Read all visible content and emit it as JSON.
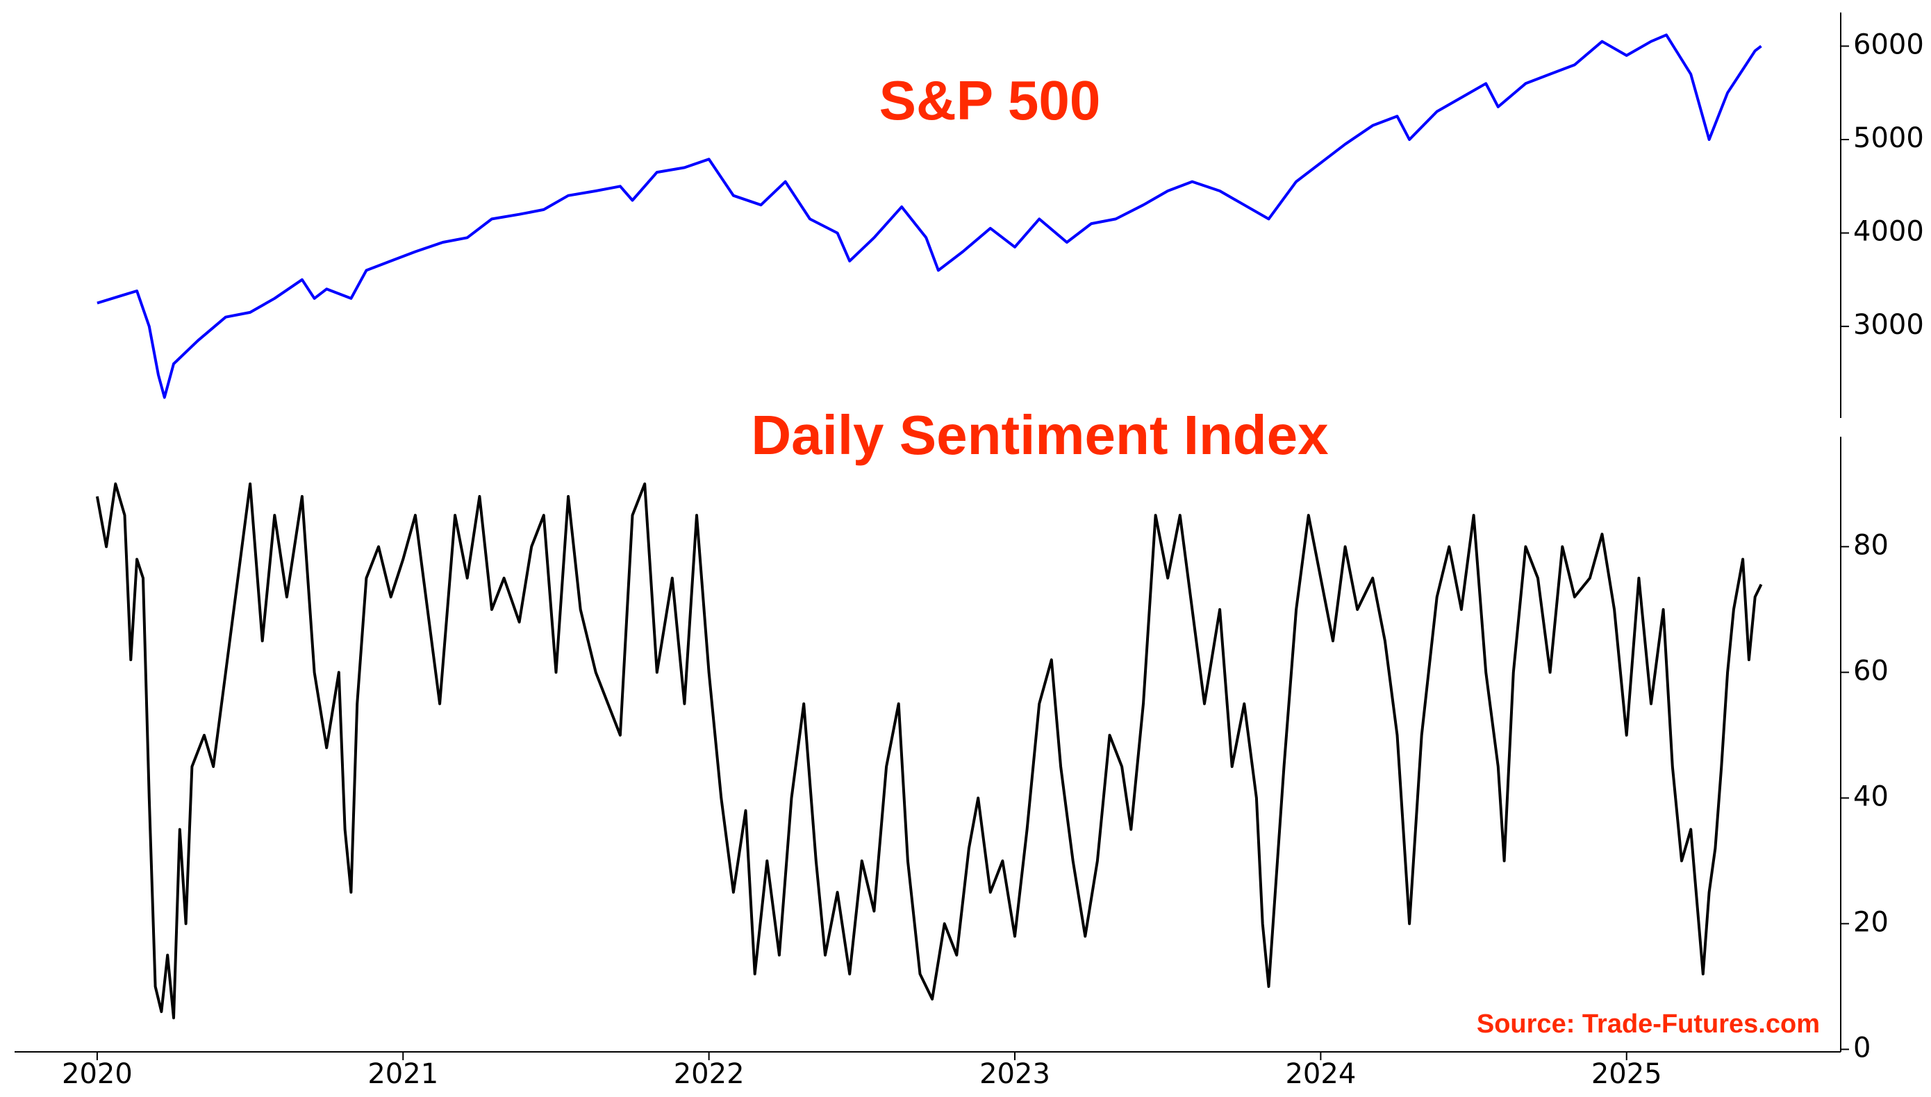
{
  "chart_data": [
    {
      "type": "line",
      "title": "S&P 500",
      "color": "#0000ff",
      "x": [
        2020.0,
        2020.08,
        2020.13,
        2020.17,
        2020.2,
        2020.22,
        2020.25,
        2020.33,
        2020.42,
        2020.5,
        2020.58,
        2020.67,
        2020.71,
        2020.75,
        2020.83,
        2020.88,
        2020.96,
        2021.04,
        2021.13,
        2021.21,
        2021.29,
        2021.38,
        2021.46,
        2021.54,
        2021.63,
        2021.71,
        2021.75,
        2021.83,
        2021.92,
        2022.0,
        2022.08,
        2022.17,
        2022.25,
        2022.33,
        2022.42,
        2022.46,
        2022.54,
        2022.63,
        2022.71,
        2022.75,
        2022.83,
        2022.92,
        2023.0,
        2023.08,
        2023.17,
        2023.25,
        2023.33,
        2023.42,
        2023.5,
        2023.58,
        2023.67,
        2023.75,
        2023.83,
        2023.92,
        2024.0,
        2024.08,
        2024.17,
        2024.25,
        2024.29,
        2024.38,
        2024.46,
        2024.54,
        2024.58,
        2024.67,
        2024.75,
        2024.83,
        2024.92,
        2025.0,
        2025.08,
        2025.13,
        2025.21,
        2025.27,
        2025.33,
        2025.38,
        2025.42,
        2025.44
      ],
      "values": [
        3250,
        3330,
        3380,
        3000,
        2480,
        2240,
        2600,
        2850,
        3100,
        3150,
        3300,
        3500,
        3300,
        3400,
        3300,
        3600,
        3700,
        3800,
        3900,
        3950,
        4150,
        4200,
        4250,
        4400,
        4450,
        4500,
        4350,
        4650,
        4700,
        4790,
        4400,
        4300,
        4550,
        4150,
        4000,
        3700,
        3950,
        4280,
        3950,
        3600,
        3800,
        4050,
        3850,
        4150,
        3900,
        4100,
        4150,
        4300,
        4450,
        4550,
        4450,
        4300,
        4150,
        4550,
        4750,
        4950,
        5150,
        5250,
        5000,
        5300,
        5450,
        5600,
        5350,
        5600,
        5700,
        5800,
        6050,
        5900,
        6050,
        6120,
        5700,
        5000,
        5500,
        5750,
        5950,
        6000
      ],
      "xlim": [
        2019.73,
        2025.7
      ],
      "ylim": [
        2020,
        6360
      ],
      "yticks": [
        3000,
        4000,
        5000,
        6000
      ]
    },
    {
      "type": "line",
      "title": "Daily Sentiment Index",
      "color": "#000000",
      "annotation": "Source: Trade-Futures.com",
      "x": [
        2020.0,
        2020.03,
        2020.06,
        2020.09,
        2020.11,
        2020.13,
        2020.15,
        2020.17,
        2020.19,
        2020.21,
        2020.23,
        2020.25,
        2020.27,
        2020.29,
        2020.31,
        2020.35,
        2020.38,
        2020.42,
        2020.46,
        2020.5,
        2020.54,
        2020.58,
        2020.62,
        2020.67,
        2020.71,
        2020.75,
        2020.79,
        2020.81,
        2020.83,
        2020.85,
        2020.88,
        2020.92,
        2020.96,
        2021.0,
        2021.04,
        2021.08,
        2021.12,
        2021.17,
        2021.21,
        2021.25,
        2021.29,
        2021.33,
        2021.38,
        2021.42,
        2021.46,
        2021.5,
        2021.54,
        2021.58,
        2021.63,
        2021.67,
        2021.71,
        2021.75,
        2021.79,
        2021.83,
        2021.88,
        2021.92,
        2021.96,
        2022.0,
        2022.04,
        2022.08,
        2022.12,
        2022.15,
        2022.19,
        2022.23,
        2022.27,
        2022.31,
        2022.35,
        2022.38,
        2022.42,
        2022.46,
        2022.5,
        2022.54,
        2022.58,
        2022.62,
        2022.65,
        2022.69,
        2022.73,
        2022.77,
        2022.81,
        2022.85,
        2022.88,
        2022.92,
        2022.96,
        2023.0,
        2023.04,
        2023.08,
        2023.12,
        2023.15,
        2023.19,
        2023.23,
        2023.27,
        2023.31,
        2023.35,
        2023.38,
        2023.42,
        2023.46,
        2023.5,
        2023.54,
        2023.58,
        2023.62,
        2023.67,
        2023.71,
        2023.75,
        2023.79,
        2023.81,
        2023.83,
        2023.88,
        2023.92,
        2023.96,
        2024.0,
        2024.04,
        2024.08,
        2024.12,
        2024.17,
        2024.21,
        2024.25,
        2024.29,
        2024.33,
        2024.38,
        2024.42,
        2024.46,
        2024.5,
        2024.54,
        2024.58,
        2024.6,
        2024.63,
        2024.67,
        2024.71,
        2024.75,
        2024.79,
        2024.83,
        2024.88,
        2024.92,
        2024.96,
        2025.0,
        2025.04,
        2025.08,
        2025.12,
        2025.15,
        2025.18,
        2025.21,
        2025.25,
        2025.27,
        2025.29,
        2025.31,
        2025.33,
        2025.35,
        2025.38,
        2025.4,
        2025.42,
        2025.44
      ],
      "values": [
        88,
        80,
        90,
        85,
        62,
        78,
        75,
        40,
        10,
        6,
        15,
        5,
        35,
        20,
        45,
        50,
        45,
        60,
        75,
        90,
        65,
        85,
        72,
        88,
        60,
        48,
        60,
        35,
        25,
        55,
        75,
        80,
        72,
        78,
        85,
        70,
        55,
        85,
        75,
        88,
        70,
        75,
        68,
        80,
        85,
        60,
        88,
        70,
        60,
        55,
        50,
        85,
        90,
        60,
        75,
        55,
        85,
        60,
        40,
        25,
        38,
        12,
        30,
        15,
        40,
        55,
        30,
        15,
        25,
        12,
        30,
        22,
        45,
        55,
        30,
        12,
        8,
        20,
        15,
        32,
        40,
        25,
        30,
        18,
        35,
        55,
        62,
        45,
        30,
        18,
        30,
        50,
        45,
        35,
        55,
        85,
        75,
        85,
        70,
        55,
        70,
        45,
        55,
        40,
        20,
        10,
        45,
        70,
        85,
        75,
        65,
        80,
        70,
        75,
        65,
        50,
        20,
        50,
        72,
        80,
        70,
        85,
        60,
        45,
        30,
        60,
        80,
        75,
        60,
        80,
        72,
        75,
        82,
        70,
        50,
        75,
        55,
        70,
        45,
        30,
        35,
        12,
        25,
        32,
        45,
        60,
        70,
        78,
        62,
        72,
        74
      ],
      "xlim": [
        2019.73,
        2025.7
      ],
      "ylim": [
        -0.4,
        97.5
      ],
      "yticks": [
        0,
        20,
        40,
        60,
        80
      ],
      "xticks": [
        2020,
        2021,
        2022,
        2023,
        2024,
        2025
      ]
    }
  ]
}
